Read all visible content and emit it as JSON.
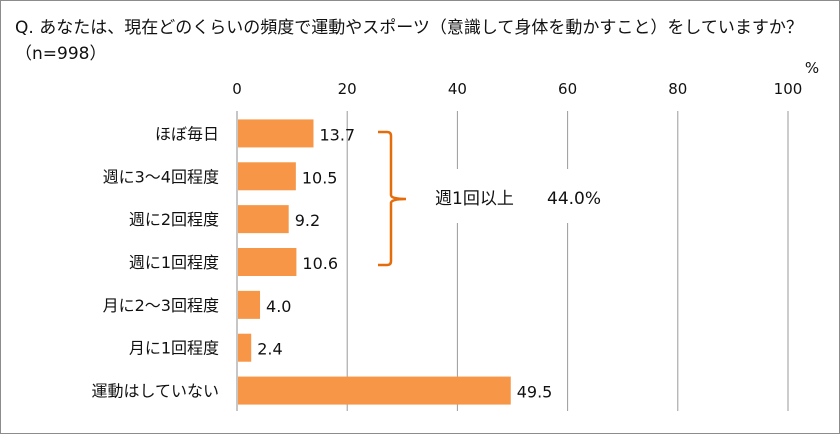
{
  "title": "Q. あなたは、現在どのくらいの頻度で運動やスポーツ（意識して身体を動かすこと）をしていますか？（n=998）",
  "chart_data": {
    "type": "bar",
    "orientation": "horizontal",
    "categories": [
      "ほぼ毎日",
      "週に3～4回程度",
      "週に2回程度",
      "週に1回程度",
      "月に2～3回程度",
      "月に1回程度",
      "運動はしていない"
    ],
    "values": [
      13.7,
      10.5,
      9.2,
      10.6,
      4.0,
      2.4,
      49.5
    ],
    "xlim": [
      0,
      100
    ],
    "x_ticks": [
      0,
      20,
      40,
      60,
      80,
      100
    ],
    "x_unit": "%",
    "axis_position": "top",
    "grid": true,
    "bar_color": "#F79646",
    "annotation": {
      "label": "週1回以上",
      "value": "44.0%",
      "bracket_color": "#E46C0A",
      "covers": [
        "ほぼ毎日",
        "週に3～4回程度",
        "週に2回程度",
        "週に1回程度"
      ]
    }
  }
}
